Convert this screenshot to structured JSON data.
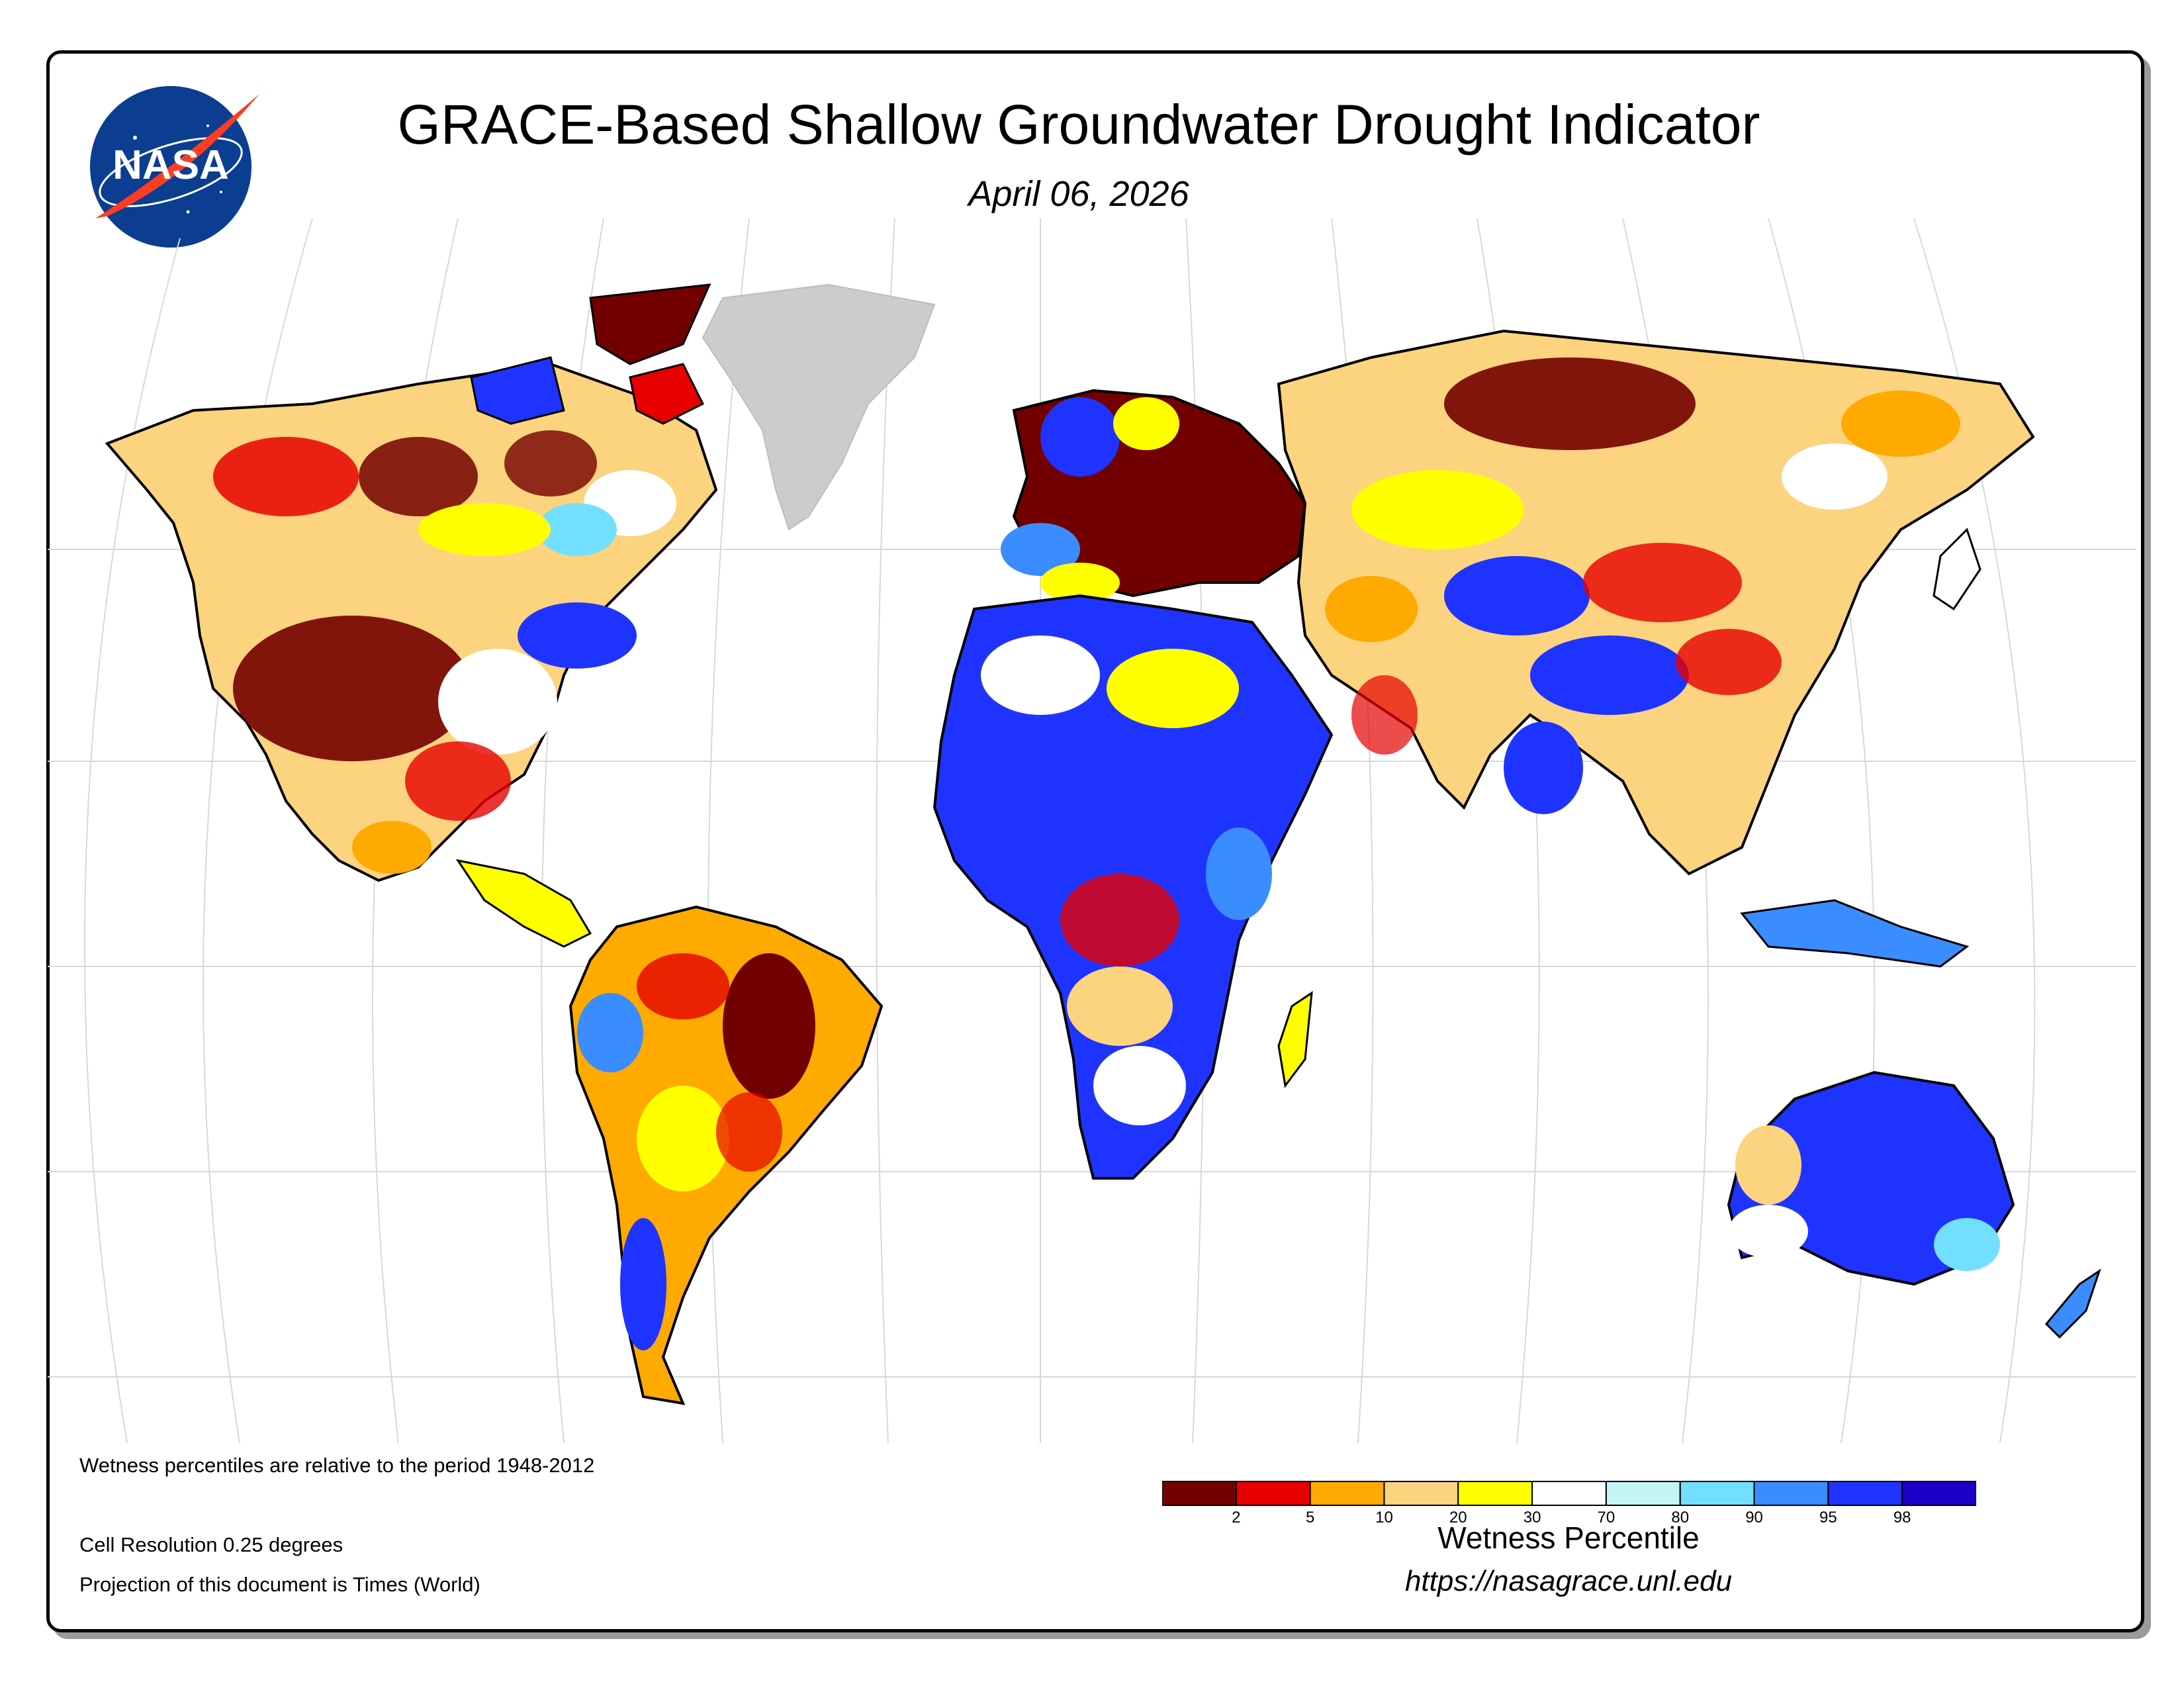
{
  "title": "GRACE-Based Shallow Groundwater Drought Indicator",
  "date": "April 06, 2026",
  "logo_text": "NASA",
  "notes": {
    "percentile_period": "Wetness percentiles are relative to the period 1948-2012",
    "resolution": "Cell Resolution 0.25 degrees",
    "projection": "Projection of this document is Times (World)"
  },
  "legend": {
    "title": "Wetness Percentile",
    "url": "https://nasagrace.unl.edu",
    "bins": [
      {
        "color": "#730000",
        "label": "2"
      },
      {
        "color": "#e60000",
        "label": "5"
      },
      {
        "color": "#ffaa00",
        "label": "10"
      },
      {
        "color": "#fcd37f",
        "label": "20"
      },
      {
        "color": "#ffff00",
        "label": "30"
      },
      {
        "color": "#ffffff",
        "label": "70"
      },
      {
        "color": "#c4f5f6",
        "label": "80"
      },
      {
        "color": "#73dfff",
        "label": "90"
      },
      {
        "color": "#3a8cff",
        "label": "95"
      },
      {
        "color": "#1f33ff",
        "label": "98"
      },
      {
        "color": "#1c00c8",
        "label": ""
      }
    ]
  },
  "map_colors": {
    "drought_extreme": "#730000",
    "drought_severe": "#e60000",
    "drought_moderate": "#ffaa00",
    "dry": "#fcd37f",
    "abnormally_dry": "#ffff00",
    "normal": "#ffffff",
    "wet": "#73dfff",
    "very_wet": "#1f33ff",
    "no_data": "#cccccc"
  }
}
